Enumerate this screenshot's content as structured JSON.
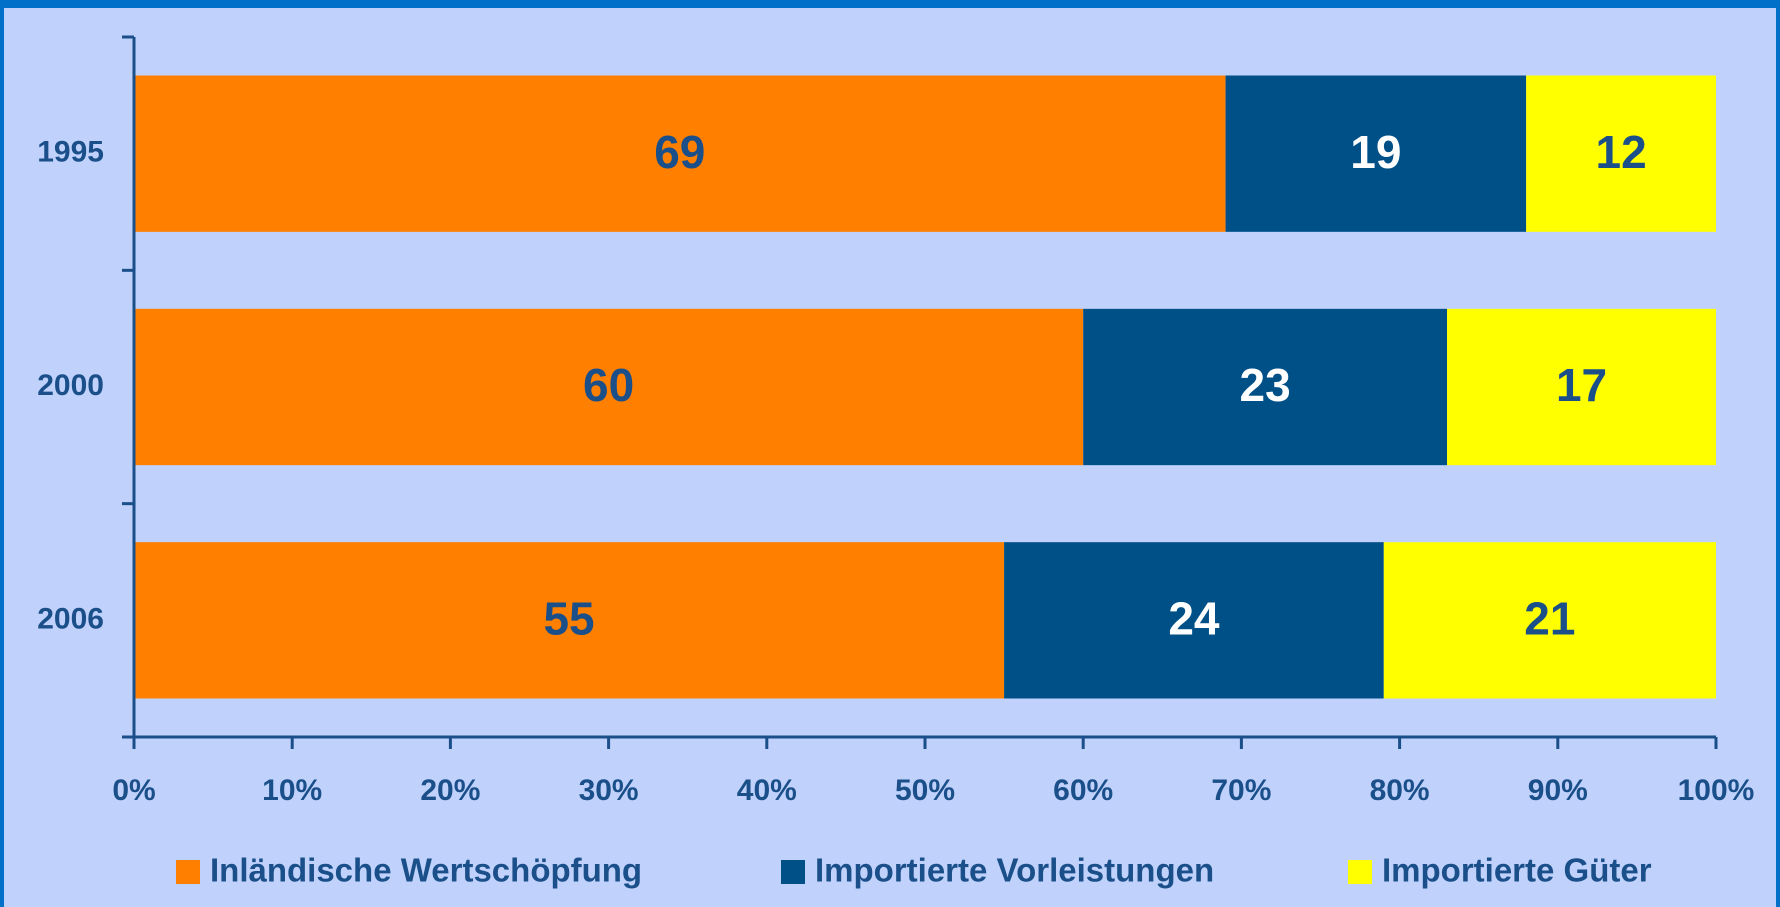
{
  "chart_data": {
    "type": "stacked_bar_horizontal",
    "categories": [
      "1995",
      "2000",
      "2006"
    ],
    "series": [
      {
        "name": "Inländische Wertschöpfung",
        "color": "#ff7f00",
        "values": [
          69,
          60,
          55
        ]
      },
      {
        "name": "Importierte Vorleistungen",
        "color": "#005088",
        "values": [
          19,
          23,
          24
        ]
      },
      {
        "name": "Importierte Güter",
        "color": "#ffff00",
        "values": [
          12,
          17,
          21
        ]
      }
    ],
    "xlim": [
      0,
      100
    ],
    "xticks": [
      {
        "value": 0,
        "label": "0%"
      },
      {
        "value": 10,
        "label": "10%"
      },
      {
        "value": 20,
        "label": "20%"
      },
      {
        "value": 30,
        "label": "30%"
      },
      {
        "value": 40,
        "label": "40%"
      },
      {
        "value": 50,
        "label": "50%"
      },
      {
        "value": 60,
        "label": "60%"
      },
      {
        "value": 70,
        "label": "70%"
      },
      {
        "value": 80,
        "label": "80%"
      },
      {
        "value": 90,
        "label": "90%"
      },
      {
        "value": 100,
        "label": "100%"
      }
    ],
    "legend": "bottom"
  }
}
